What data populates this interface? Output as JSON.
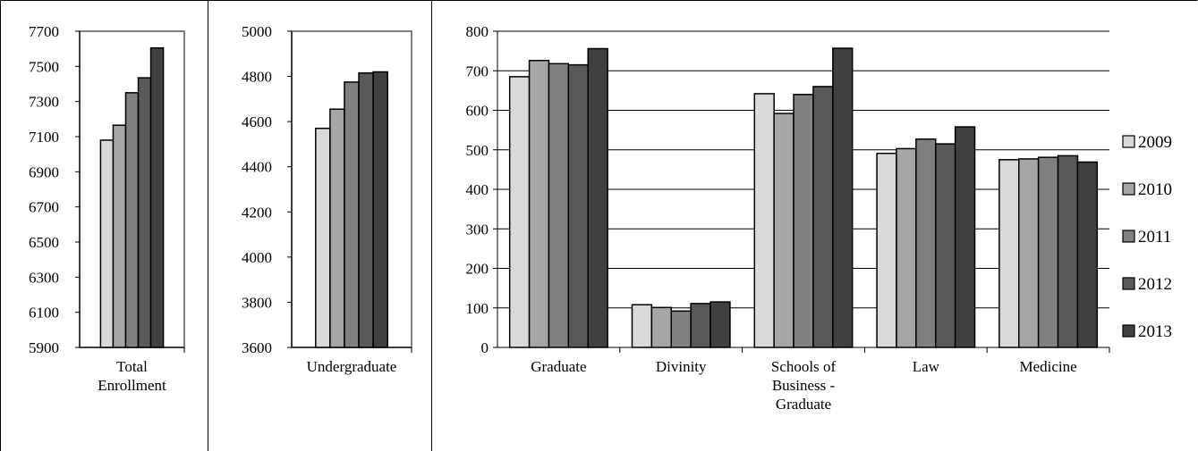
{
  "colors": {
    "years": [
      "#d9d9d9",
      "#a6a6a6",
      "#808080",
      "#595959",
      "#404040"
    ],
    "grid": "#000000",
    "frame": "#808080",
    "background": "#ffffff"
  },
  "legend": [
    "2009",
    "2010",
    "2011",
    "2012",
    "2013"
  ],
  "chart_data": [
    {
      "type": "bar",
      "categories": [
        "Total Enrollment"
      ],
      "category_lines": [
        [
          "Total",
          "Enrollment"
        ]
      ],
      "series": [
        {
          "name": "2009",
          "values": [
            7080
          ]
        },
        {
          "name": "2010",
          "values": [
            7165
          ]
        },
        {
          "name": "2011",
          "values": [
            7350
          ]
        },
        {
          "name": "2012",
          "values": [
            7435
          ]
        },
        {
          "name": "2013",
          "values": [
            7605
          ]
        }
      ],
      "ylim": [
        5900,
        7700
      ],
      "yticks": [
        5900,
        6100,
        6300,
        6500,
        6700,
        6900,
        7100,
        7300,
        7500,
        7700
      ],
      "gridlines": false,
      "legend": "none"
    },
    {
      "type": "bar",
      "categories": [
        "Undergraduate"
      ],
      "category_lines": [
        [
          "Undergraduate"
        ]
      ],
      "series": [
        {
          "name": "2009",
          "values": [
            4570
          ]
        },
        {
          "name": "2010",
          "values": [
            4655
          ]
        },
        {
          "name": "2011",
          "values": [
            4775
          ]
        },
        {
          "name": "2012",
          "values": [
            4815
          ]
        },
        {
          "name": "2013",
          "values": [
            4820
          ]
        }
      ],
      "ylim": [
        3600,
        5000
      ],
      "yticks": [
        3600,
        3800,
        4000,
        4200,
        4400,
        4600,
        4800,
        5000
      ],
      "gridlines": false,
      "legend": "none"
    },
    {
      "type": "bar",
      "categories": [
        "Graduate",
        "Divinity",
        "Schools of Business - Graduate",
        "Law",
        "Medicine"
      ],
      "category_lines": [
        [
          "Graduate"
        ],
        [
          "Divinity"
        ],
        [
          "Schools of",
          "Business -",
          "Graduate"
        ],
        [
          "Law"
        ],
        [
          "Medicine"
        ]
      ],
      "series": [
        {
          "name": "2009",
          "values": [
            685,
            108,
            642,
            491,
            475
          ]
        },
        {
          "name": "2010",
          "values": [
            726,
            101,
            592,
            503,
            477
          ]
        },
        {
          "name": "2011",
          "values": [
            718,
            92,
            640,
            527,
            481
          ]
        },
        {
          "name": "2012",
          "values": [
            715,
            111,
            660,
            515,
            485
          ]
        },
        {
          "name": "2013",
          "values": [
            756,
            115,
            757,
            558,
            469
          ]
        }
      ],
      "ylim": [
        0,
        800
      ],
      "yticks": [
        0,
        100,
        200,
        300,
        400,
        500,
        600,
        700,
        800
      ],
      "gridlines": true,
      "legend": "right"
    }
  ]
}
